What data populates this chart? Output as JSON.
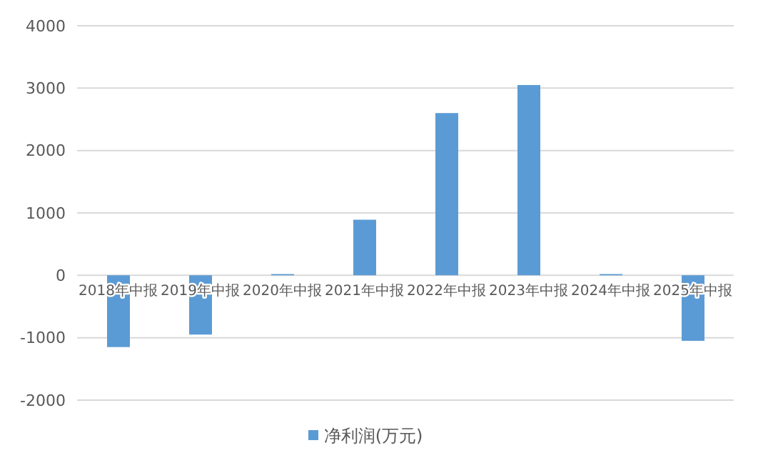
{
  "chart_data": {
    "type": "bar",
    "categories": [
      "2018年中报",
      "2019年中报",
      "2020年中报",
      "2021年中报",
      "2022年中报",
      "2023年中报",
      "2024年中报",
      "2025年中报"
    ],
    "series": [
      {
        "name": "净利润(万元)",
        "color": "#5b9bd5",
        "values": [
          -1150,
          -950,
          20,
          890,
          2600,
          3050,
          20,
          -1050
        ]
      }
    ],
    "ylim": [
      -2000,
      4000
    ],
    "yticks": [
      -2000,
      -1000,
      0,
      1000,
      2000,
      3000,
      4000
    ],
    "grid": "y",
    "legend": "bottom"
  }
}
